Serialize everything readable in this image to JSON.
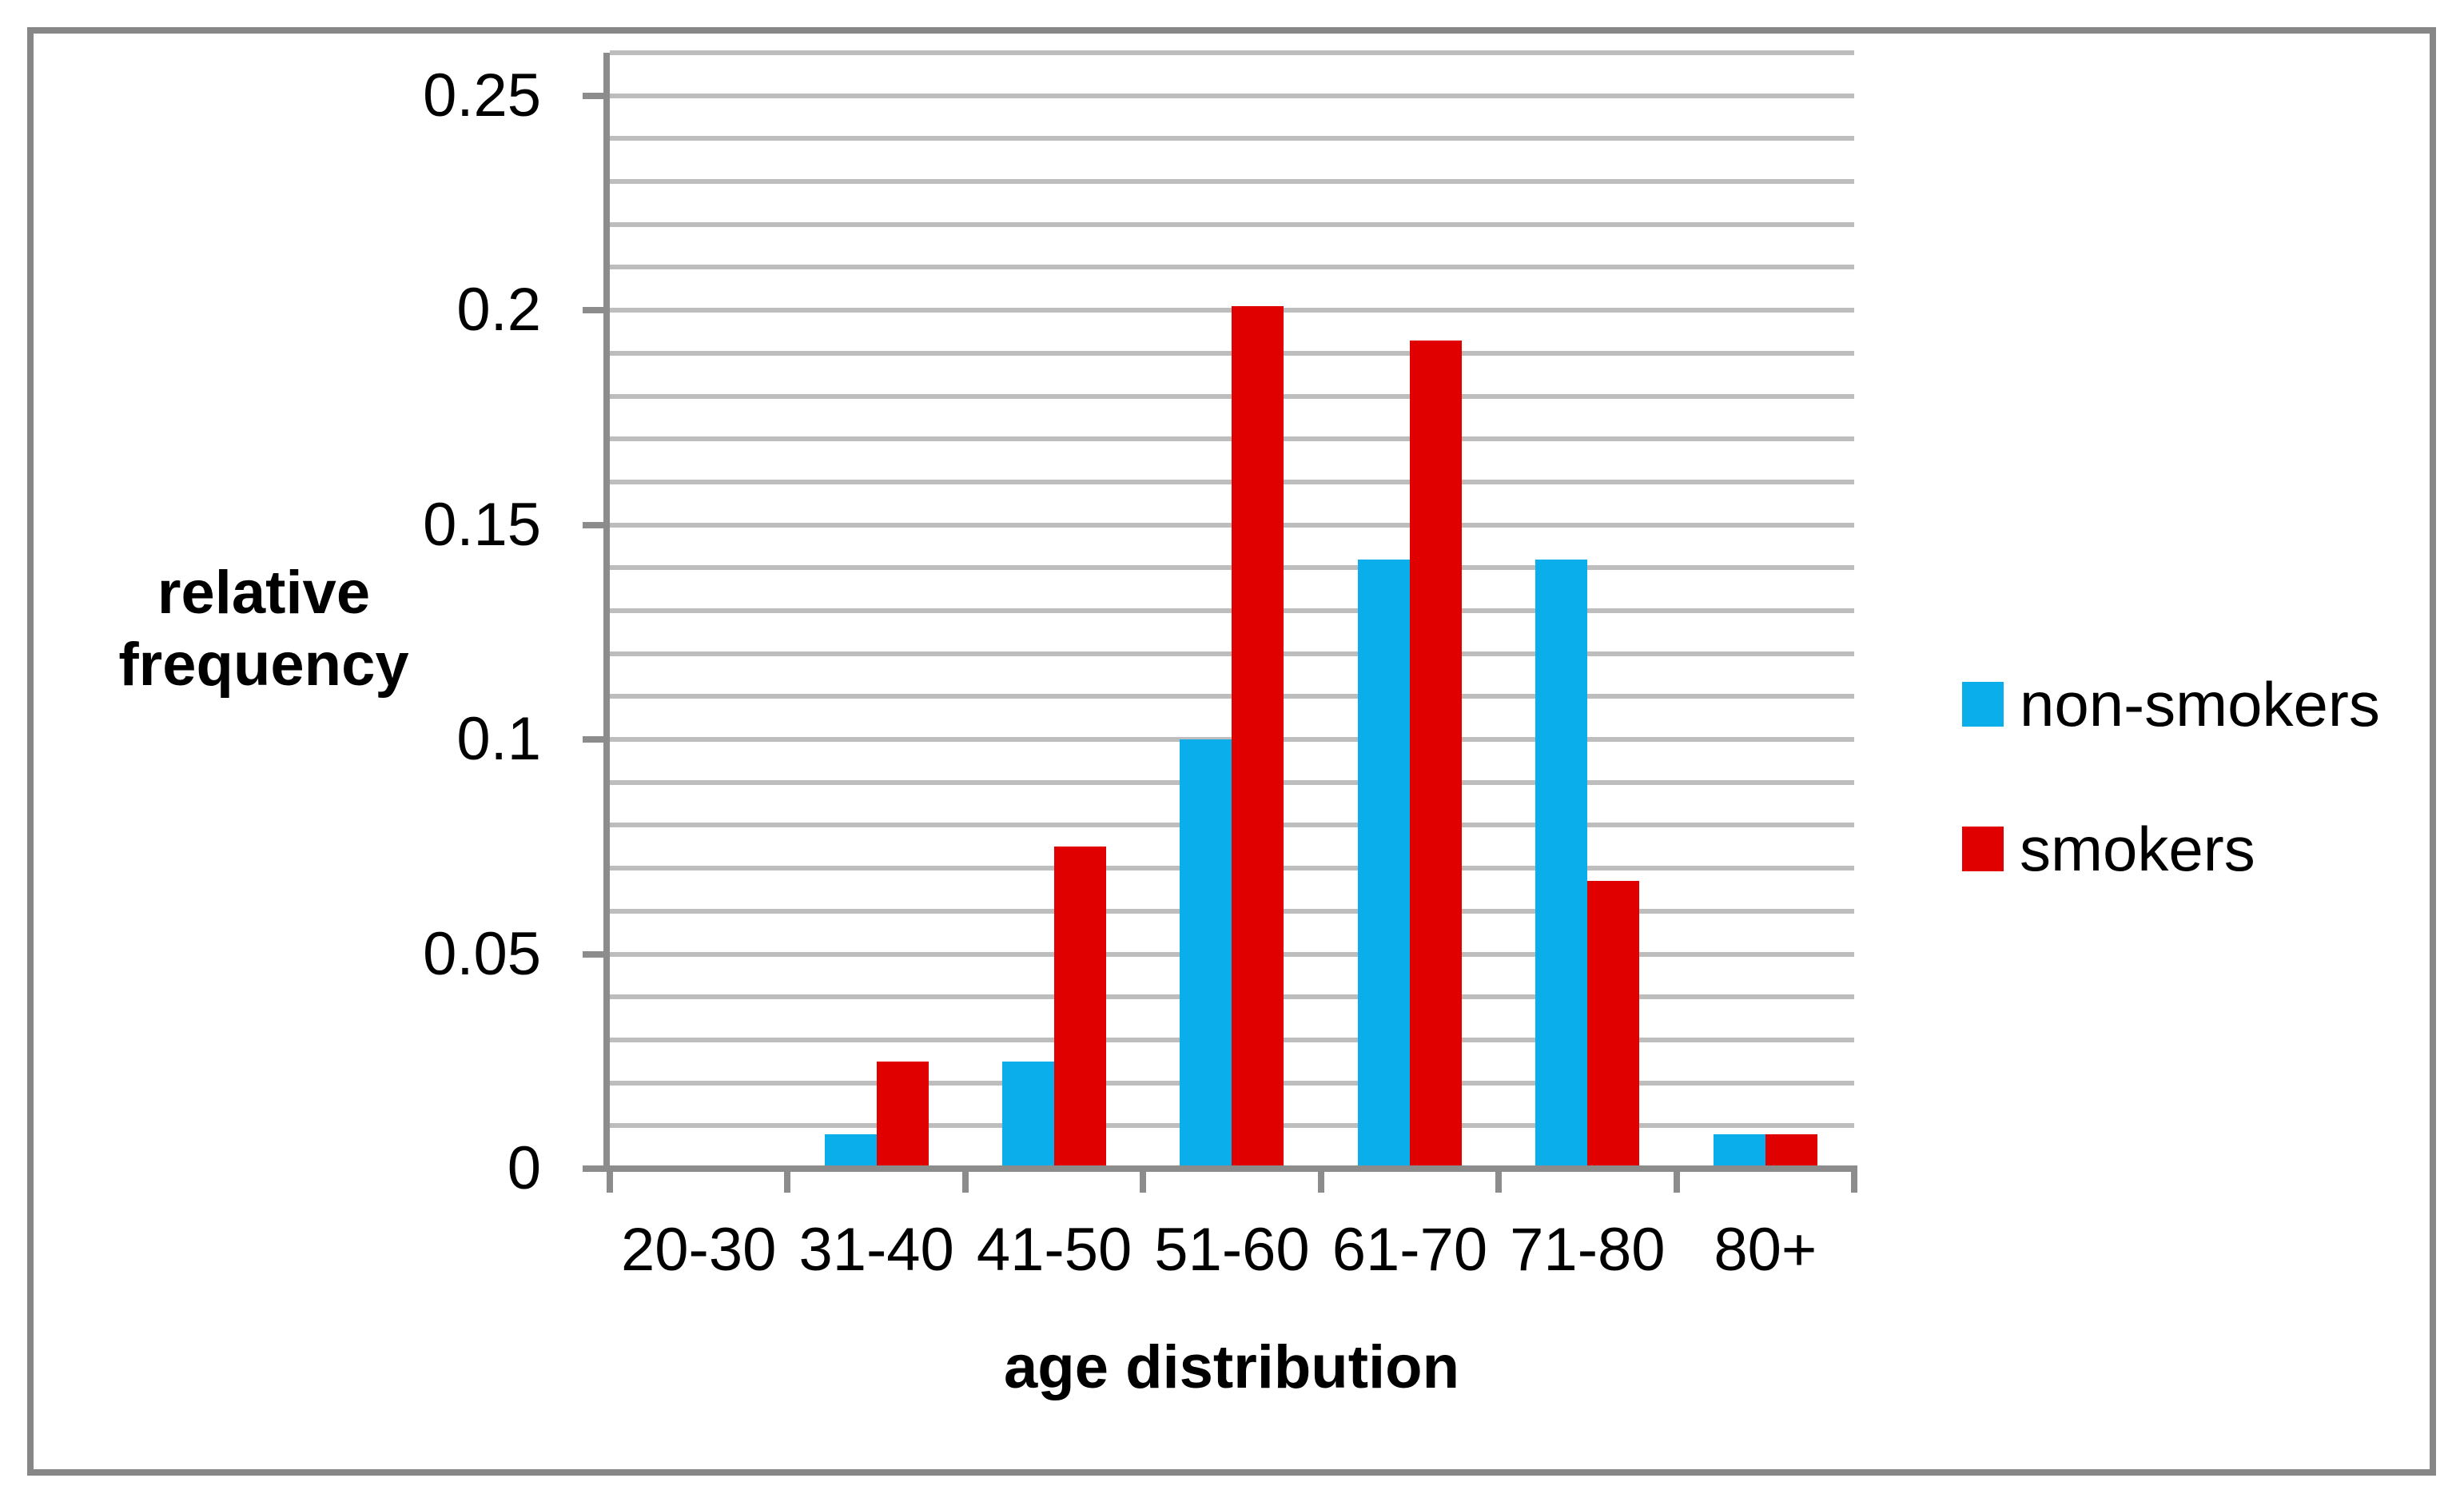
{
  "chart_data": {
    "type": "bar",
    "title": "",
    "xlabel": "age distribution",
    "ylabel_lines": [
      "relative",
      "frequency"
    ],
    "categories": [
      "20-30",
      "31-40",
      "41-50",
      "51-60",
      "61-70",
      "71-80",
      "80+"
    ],
    "series": [
      {
        "name": "non-smokers",
        "color": "#0aaeeb",
        "values": [
          0,
          0.008,
          0.025,
          0.1,
          0.142,
          0.142,
          0.008
        ]
      },
      {
        "name": "smokers",
        "color": "#e00000",
        "values": [
          0,
          0.025,
          0.075,
          0.201,
          0.193,
          0.067,
          0.008
        ]
      }
    ],
    "ylim": [
      0,
      0.26
    ],
    "gridline_step": 0.01,
    "grid": true,
    "legend_position": "right",
    "y_ticks": [
      {
        "label": "0.25",
        "value": 0.25
      },
      {
        "label": "0.2",
        "value": 0.2
      },
      {
        "label": "0.15",
        "value": 0.15
      },
      {
        "label": "0.1",
        "value": 0.1
      },
      {
        "label": "0.05",
        "value": 0.05
      },
      {
        "label": "0",
        "value": 0
      }
    ]
  },
  "colors": {
    "gridline": "#bdbdbd",
    "axis": "#8c8c8c",
    "frame_border": "#878787",
    "text": "#000000",
    "background": "#ffffff"
  }
}
